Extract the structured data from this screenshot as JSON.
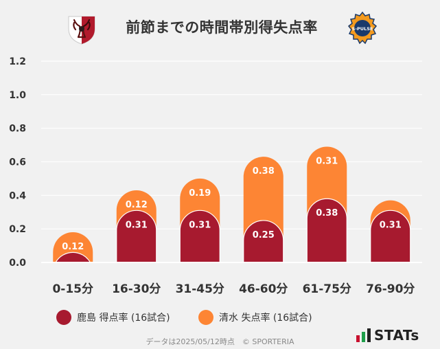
{
  "title": "前節までの時間帯別得失点率",
  "legend": {
    "kashima": "鹿島 得点率 (16試合)",
    "shimizu": "清水 失点率 (16試合)"
  },
  "footer": "データは2025/05/12時点　© SPORTERIA",
  "brand": "STATs",
  "logo_right_text": "S-PULSE",
  "colors": {
    "kashima": "#a71a2f",
    "shimizu": "#fd8534",
    "grid": "#ffffff",
    "background": "#f1f1f1",
    "text": "#333333"
  },
  "chart_data": {
    "type": "bar",
    "stacked": true,
    "categories": [
      "0-15分",
      "16-30分",
      "31-45分",
      "46-60分",
      "61-75分",
      "76-90分"
    ],
    "series": [
      {
        "name": "鹿島 得点率 (16試合)",
        "values": [
          0.06,
          0.31,
          0.31,
          0.25,
          0.38,
          0.31
        ],
        "labels": [
          "",
          "0.31",
          "0.31",
          "0.25",
          "0.38",
          "0.31"
        ]
      },
      {
        "name": "清水 失点率 (16試合)",
        "values": [
          0.12,
          0.12,
          0.19,
          0.38,
          0.31,
          0.06
        ],
        "labels": [
          "0.12",
          "0.12",
          "0.19",
          "0.38",
          "0.31",
          ""
        ]
      }
    ],
    "ylim": [
      0,
      1.2
    ],
    "yticks": [
      "0.0",
      "0.2",
      "0.4",
      "0.6",
      "0.8",
      "1.0",
      "1.2"
    ],
    "grid": true,
    "legend_position": "bottom"
  }
}
